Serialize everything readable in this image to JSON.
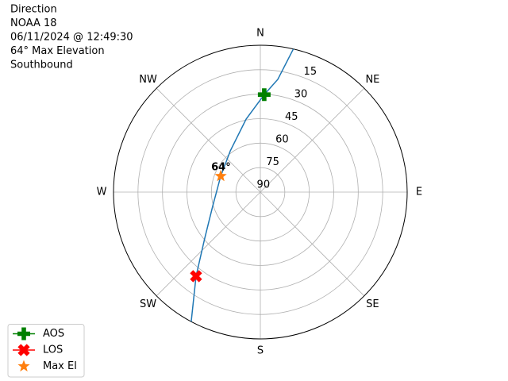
{
  "chart_data": {
    "type": "polar",
    "text_lines": [
      "Direction",
      "NOAA 18",
      "06/11/2024 @ 12:49:30",
      "64° Max Elevation",
      "Southbound"
    ],
    "thetaticks": [
      {
        "value": 0,
        "label": "N"
      },
      {
        "value": 45,
        "label": "NE"
      },
      {
        "value": 90,
        "label": "E"
      },
      {
        "value": 135,
        "label": "SE"
      },
      {
        "value": 180,
        "label": "S"
      },
      {
        "value": 225,
        "label": "SW"
      },
      {
        "value": 270,
        "label": "W"
      },
      {
        "value": 315,
        "label": "NW"
      }
    ],
    "rlim": [
      90,
      0
    ],
    "rticks": [
      15,
      30,
      45,
      60,
      75,
      90
    ],
    "grid": true,
    "track": {
      "color": "#1f77b4",
      "azimuth": [
        13,
        8.8,
        2.3,
        349,
        324,
        292,
        253.3,
        230.4,
        217.4,
        208.1
      ],
      "elevation": [
        0,
        20.1,
        30.2,
        44.4,
        58.7,
        63.8,
        59.5,
        45.8,
        25.1,
        0
      ]
    },
    "series": [
      {
        "name": "AOS",
        "color": "#008000",
        "marker": "plus",
        "azimuth": [
          2.3
        ],
        "elevation": [
          30.2
        ]
      },
      {
        "name": "LOS",
        "color": "#ff0000",
        "marker": "x",
        "azimuth": [
          217.4
        ],
        "elevation": [
          25.1
        ]
      },
      {
        "name": "Max El",
        "color": "#ff7f0e",
        "marker": "star",
        "azimuth": [
          292
        ],
        "elevation": [
          63.8
        ]
      }
    ],
    "annotation": {
      "value": 64,
      "label": "64°",
      "azimuth": 292,
      "elevation": 64
    },
    "legend": "lower left"
  }
}
